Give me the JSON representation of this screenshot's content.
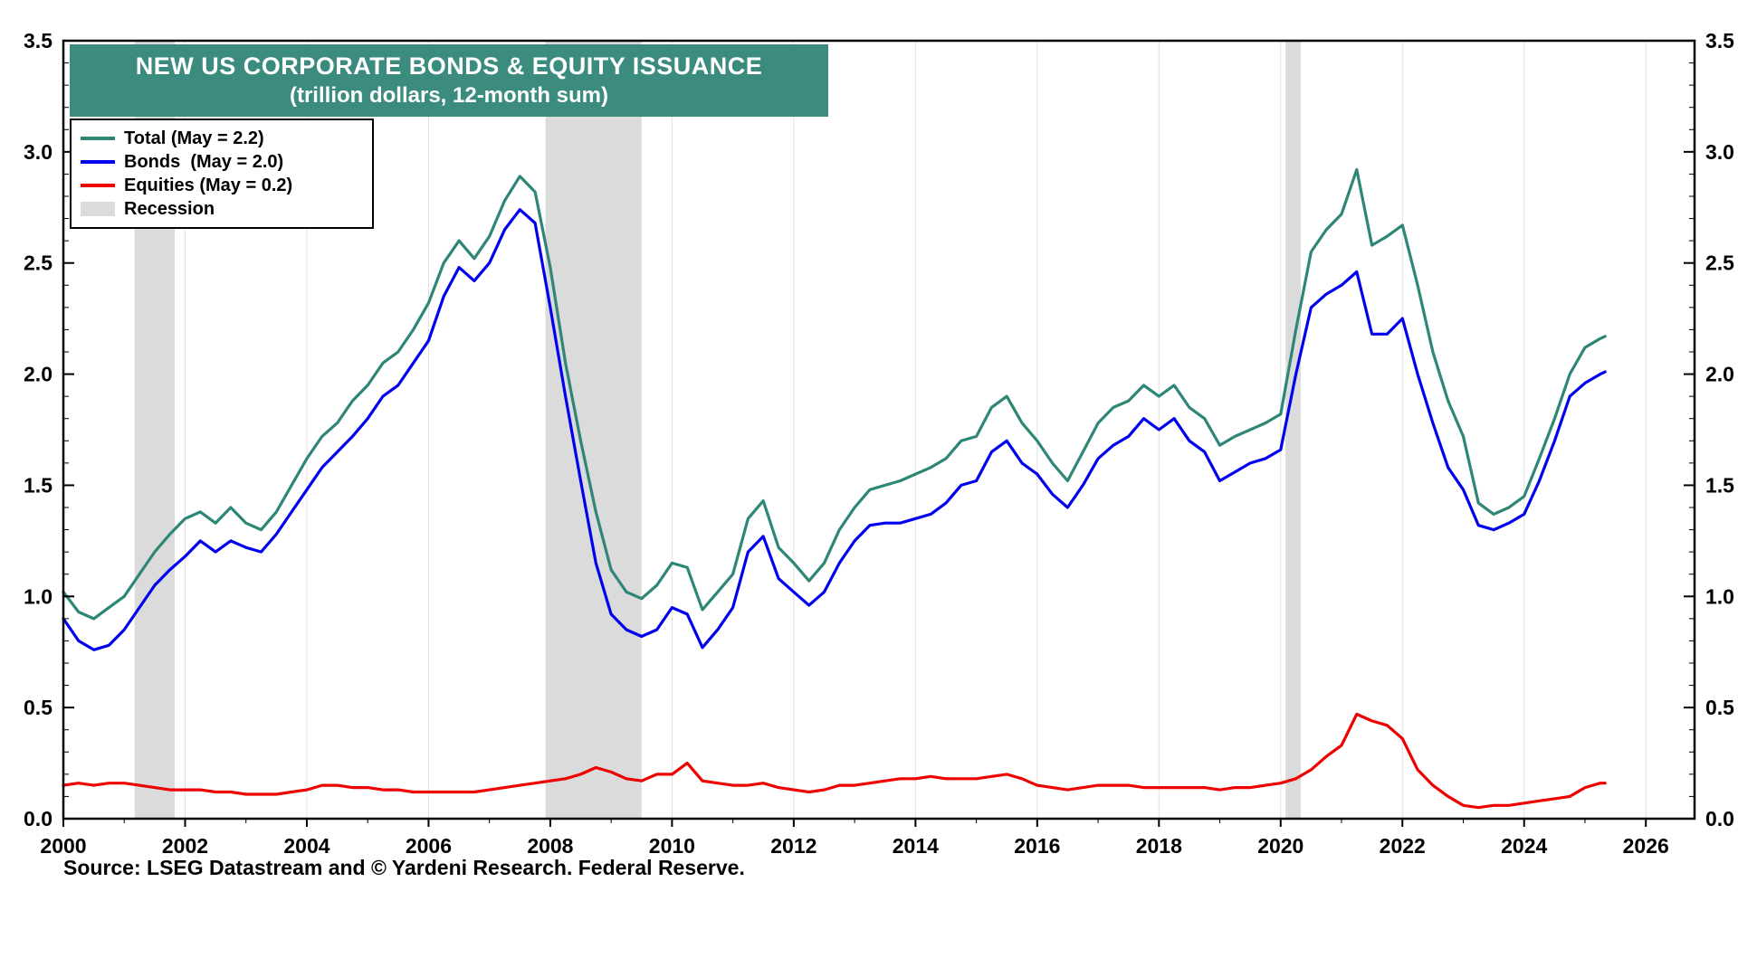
{
  "title": {
    "line1": "NEW US CORPORATE BONDS & EQUITY ISSUANCE",
    "line2": "(trillion dollars, 12-month sum)"
  },
  "source": "Source: LSEG Datastream and © Yardeni Research. Federal Reserve.",
  "colors": {
    "background": "#FFFFFF",
    "axis": "#000000",
    "grid": "#E2E2E2",
    "recession": "#DBDBDB",
    "title_box_bg": "#3B8C7E",
    "title_text": "#FFFFFF",
    "total": "#2E8677",
    "bonds": "#0000EE",
    "equities": "#EE0000"
  },
  "legend": {
    "items": [
      {
        "label": "Total (May = 2.2)",
        "color": "#2E8677",
        "type": "line"
      },
      {
        "label": "Bonds  (May = 2.0)",
        "color": "#0000EE",
        "type": "line"
      },
      {
        "label": "Equities (May = 0.2)",
        "color": "#EE0000",
        "type": "line"
      },
      {
        "label": "Recession",
        "color": "#DBDBDB",
        "type": "band"
      }
    ]
  },
  "chart_data": {
    "type": "line",
    "title": "NEW US CORPORATE BONDS & EQUITY ISSUANCE",
    "subtitle": "(trillion dollars, 12-month sum)",
    "xlabel": "",
    "ylabel": "trillion dollars, 12-month sum",
    "x_range": [
      2000,
      2026.8
    ],
    "y_range": [
      0,
      3.5
    ],
    "grid": "vertical-only",
    "legend_position": "top-left",
    "x_major_ticks": [
      2000,
      2002,
      2004,
      2006,
      2008,
      2010,
      2012,
      2014,
      2016,
      2018,
      2020,
      2022,
      2024,
      2026
    ],
    "x_minor_ticks": [
      2001,
      2003,
      2005,
      2007,
      2009,
      2011,
      2013,
      2015,
      2017,
      2019,
      2021,
      2023,
      2025
    ],
    "y_major_ticks": [
      0,
      0.5,
      1.0,
      1.5,
      2.0,
      2.5,
      3.0,
      3.5
    ],
    "y_tick_labels": [
      "0.0",
      "0.5",
      "1.0",
      "1.5",
      "2.0",
      "2.5",
      "3.0",
      "3.5"
    ],
    "recessions": [
      {
        "start": 2001.17,
        "end": 2001.83
      },
      {
        "start": 2007.92,
        "end": 2009.5
      },
      {
        "start": 2020.08,
        "end": 2020.33
      }
    ],
    "x": [
      2000,
      2000.25,
      2000.5,
      2000.75,
      2001,
      2001.25,
      2001.5,
      2001.75,
      2002,
      2002.25,
      2002.5,
      2002.75,
      2003,
      2003.25,
      2003.5,
      2003.75,
      2004,
      2004.25,
      2004.5,
      2004.75,
      2005,
      2005.25,
      2005.5,
      2005.75,
      2006,
      2006.25,
      2006.5,
      2006.75,
      2007,
      2007.25,
      2007.5,
      2007.75,
      2008,
      2008.25,
      2008.5,
      2008.75,
      2009,
      2009.25,
      2009.5,
      2009.75,
      2010,
      2010.25,
      2010.5,
      2010.75,
      2011,
      2011.25,
      2011.5,
      2011.75,
      2012,
      2012.25,
      2012.5,
      2012.75,
      2013,
      2013.25,
      2013.5,
      2013.75,
      2014,
      2014.25,
      2014.5,
      2014.75,
      2015,
      2015.25,
      2015.5,
      2015.75,
      2016,
      2016.25,
      2016.5,
      2016.75,
      2017,
      2017.25,
      2017.5,
      2017.75,
      2018,
      2018.25,
      2018.5,
      2018.75,
      2019,
      2019.25,
      2019.5,
      2019.75,
      2020,
      2020.25,
      2020.5,
      2020.75,
      2021,
      2021.25,
      2021.5,
      2021.75,
      2022,
      2022.25,
      2022.5,
      2022.75,
      2023,
      2023.25,
      2023.5,
      2023.75,
      2024,
      2024.25,
      2024.5,
      2024.75,
      2025,
      2025.25,
      2025.33
    ],
    "series": [
      {
        "name": "Total",
        "color": "#2E8677",
        "latest_label": "May = 2.2",
        "values": [
          1.02,
          0.93,
          0.9,
          0.95,
          1.0,
          1.1,
          1.2,
          1.28,
          1.35,
          1.38,
          1.33,
          1.4,
          1.33,
          1.3,
          1.38,
          1.5,
          1.62,
          1.72,
          1.78,
          1.88,
          1.95,
          2.05,
          2.1,
          2.2,
          2.32,
          2.5,
          2.6,
          2.52,
          2.62,
          2.78,
          2.89,
          2.82,
          2.48,
          2.05,
          1.7,
          1.38,
          1.12,
          1.02,
          0.99,
          1.05,
          1.15,
          1.13,
          0.94,
          1.02,
          1.1,
          1.35,
          1.43,
          1.22,
          1.15,
          1.07,
          1.15,
          1.3,
          1.4,
          1.48,
          1.5,
          1.52,
          1.55,
          1.58,
          1.62,
          1.7,
          1.72,
          1.85,
          1.9,
          1.78,
          1.7,
          1.6,
          1.52,
          1.65,
          1.78,
          1.85,
          1.88,
          1.95,
          1.9,
          1.95,
          1.85,
          1.8,
          1.68,
          1.72,
          1.75,
          1.78,
          1.82,
          2.2,
          2.55,
          2.65,
          2.72,
          2.92,
          2.58,
          2.62,
          2.67,
          2.4,
          2.1,
          1.88,
          1.72,
          1.42,
          1.37,
          1.4,
          1.45,
          1.62,
          1.8,
          2.0,
          2.12,
          2.16,
          2.17
        ]
      },
      {
        "name": "Bonds",
        "color": "#0000EE",
        "latest_label": "May = 2.0",
        "values": [
          0.9,
          0.8,
          0.76,
          0.78,
          0.85,
          0.95,
          1.05,
          1.12,
          1.18,
          1.25,
          1.2,
          1.25,
          1.22,
          1.2,
          1.28,
          1.38,
          1.48,
          1.58,
          1.65,
          1.72,
          1.8,
          1.9,
          1.95,
          2.05,
          2.15,
          2.35,
          2.48,
          2.42,
          2.5,
          2.65,
          2.74,
          2.68,
          2.3,
          1.9,
          1.52,
          1.15,
          0.92,
          0.85,
          0.82,
          0.85,
          0.95,
          0.92,
          0.77,
          0.85,
          0.95,
          1.2,
          1.27,
          1.08,
          1.02,
          0.96,
          1.02,
          1.15,
          1.25,
          1.32,
          1.33,
          1.33,
          1.35,
          1.37,
          1.42,
          1.5,
          1.52,
          1.65,
          1.7,
          1.6,
          1.55,
          1.46,
          1.4,
          1.5,
          1.62,
          1.68,
          1.72,
          1.8,
          1.75,
          1.8,
          1.7,
          1.65,
          1.52,
          1.56,
          1.6,
          1.62,
          1.66,
          2.0,
          2.3,
          2.36,
          2.4,
          2.46,
          2.18,
          2.18,
          2.25,
          2.0,
          1.78,
          1.58,
          1.48,
          1.32,
          1.3,
          1.33,
          1.37,
          1.52,
          1.7,
          1.9,
          1.96,
          2.0,
          2.01
        ]
      },
      {
        "name": "Equities",
        "color": "#EE0000",
        "latest_label": "May = 0.2",
        "values": [
          0.15,
          0.16,
          0.15,
          0.16,
          0.16,
          0.15,
          0.14,
          0.13,
          0.13,
          0.13,
          0.12,
          0.12,
          0.11,
          0.11,
          0.11,
          0.12,
          0.13,
          0.15,
          0.15,
          0.14,
          0.14,
          0.13,
          0.13,
          0.12,
          0.12,
          0.12,
          0.12,
          0.12,
          0.13,
          0.14,
          0.15,
          0.16,
          0.17,
          0.18,
          0.2,
          0.23,
          0.21,
          0.18,
          0.17,
          0.2,
          0.2,
          0.25,
          0.17,
          0.16,
          0.15,
          0.15,
          0.16,
          0.14,
          0.13,
          0.12,
          0.13,
          0.15,
          0.15,
          0.16,
          0.17,
          0.18,
          0.18,
          0.19,
          0.18,
          0.18,
          0.18,
          0.19,
          0.2,
          0.18,
          0.15,
          0.14,
          0.13,
          0.14,
          0.15,
          0.15,
          0.15,
          0.14,
          0.14,
          0.14,
          0.14,
          0.14,
          0.13,
          0.14,
          0.14,
          0.15,
          0.16,
          0.18,
          0.22,
          0.28,
          0.33,
          0.47,
          0.44,
          0.42,
          0.36,
          0.22,
          0.15,
          0.1,
          0.06,
          0.05,
          0.06,
          0.06,
          0.07,
          0.08,
          0.09,
          0.1,
          0.14,
          0.16,
          0.16
        ]
      }
    ]
  }
}
